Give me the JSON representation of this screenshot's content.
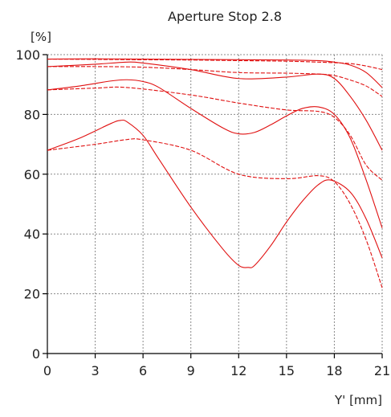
{
  "chart_data": {
    "type": "line",
    "title": "Aperture Stop 2.8",
    "ylabel": "[%]",
    "xlabel": "Y' [mm]",
    "xlim": [
      0,
      21
    ],
    "ylim": [
      0,
      100
    ],
    "xticks": [
      0,
      3,
      6,
      9,
      12,
      15,
      18,
      21
    ],
    "yticks": [
      0,
      20,
      40,
      60,
      80,
      100
    ],
    "grid": true,
    "colors": {
      "curve": "#e01010",
      "grid": "#8a8a8a",
      "axis": "#000000"
    },
    "series": [
      {
        "style": "solid",
        "x": [
          0,
          3,
          6,
          9,
          12,
          15,
          17,
          18,
          19,
          20,
          21
        ],
        "y": [
          98.5,
          98.6,
          98.5,
          98.4,
          98.3,
          98.2,
          98,
          97.5,
          96.5,
          94,
          89
        ]
      },
      {
        "style": "dashed",
        "x": [
          0,
          3,
          6,
          9,
          12,
          15,
          17,
          18,
          19,
          20,
          21
        ],
        "y": [
          98.5,
          98.4,
          98.3,
          98.2,
          98,
          97.8,
          97.5,
          97.3,
          97,
          96.2,
          95
        ]
      },
      {
        "style": "solid",
        "x": [
          0,
          3,
          5,
          6,
          9,
          12,
          15,
          17,
          18,
          19,
          20,
          21
        ],
        "y": [
          96,
          96.8,
          97.5,
          97.2,
          95,
          92,
          92.5,
          93.5,
          92,
          86,
          78,
          68
        ]
      },
      {
        "style": "dashed",
        "x": [
          0,
          3,
          6,
          9,
          12,
          15,
          17,
          18,
          19,
          20,
          21
        ],
        "y": [
          96,
          96,
          95.8,
          95,
          94,
          93.8,
          93.5,
          93,
          91.5,
          89.5,
          86
        ]
      },
      {
        "style": "solid",
        "x": [
          0,
          2,
          4,
          5,
          6,
          7,
          9,
          11,
          12,
          13,
          14,
          15,
          16,
          17,
          18,
          19,
          20,
          21
        ],
        "y": [
          88.2,
          89.5,
          91.2,
          91.6,
          91,
          89,
          82,
          75.5,
          73.5,
          74,
          76.5,
          79.5,
          82,
          82.5,
          80,
          72,
          58,
          42
        ]
      },
      {
        "style": "dashed",
        "x": [
          0,
          3,
          5,
          9,
          12,
          15,
          17,
          18,
          19,
          20,
          21
        ],
        "y": [
          88.2,
          88.8,
          89,
          86.5,
          83.8,
          81.5,
          81,
          79,
          73,
          63,
          58
        ]
      },
      {
        "style": "solid",
        "x": [
          0,
          2,
          4,
          4.6,
          5,
          6,
          7,
          9,
          11,
          12,
          12.6,
          13,
          14,
          15,
          16,
          17,
          17.8,
          19,
          20,
          21
        ],
        "y": [
          68,
          72,
          77,
          78,
          77.5,
          73,
          65,
          49,
          35,
          29.5,
          28.8,
          29.5,
          36,
          44,
          51,
          56.5,
          58,
          54,
          45,
          32
        ]
      },
      {
        "style": "dashed",
        "x": [
          0,
          3,
          5,
          6,
          9,
          12,
          15,
          17,
          18,
          19,
          20,
          21
        ],
        "y": [
          68,
          70,
          71.6,
          71.5,
          68,
          60,
          58.5,
          59.5,
          57.5,
          50,
          38,
          22
        ]
      }
    ]
  }
}
